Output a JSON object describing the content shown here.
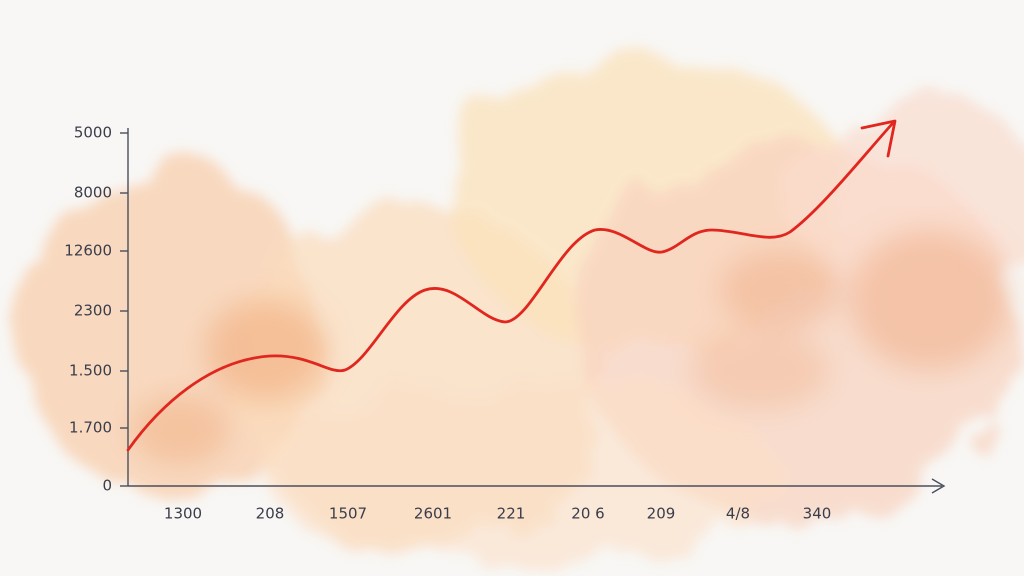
{
  "y_axis_labels": [
    "5000",
    "8000",
    "12600",
    "2300",
    "1.500",
    "1.700",
    "0"
  ],
  "x_axis_labels": [
    "1300",
    "208",
    "1507",
    "2601",
    "221",
    "20 6",
    "209",
    "4/8",
    "340"
  ]
}
